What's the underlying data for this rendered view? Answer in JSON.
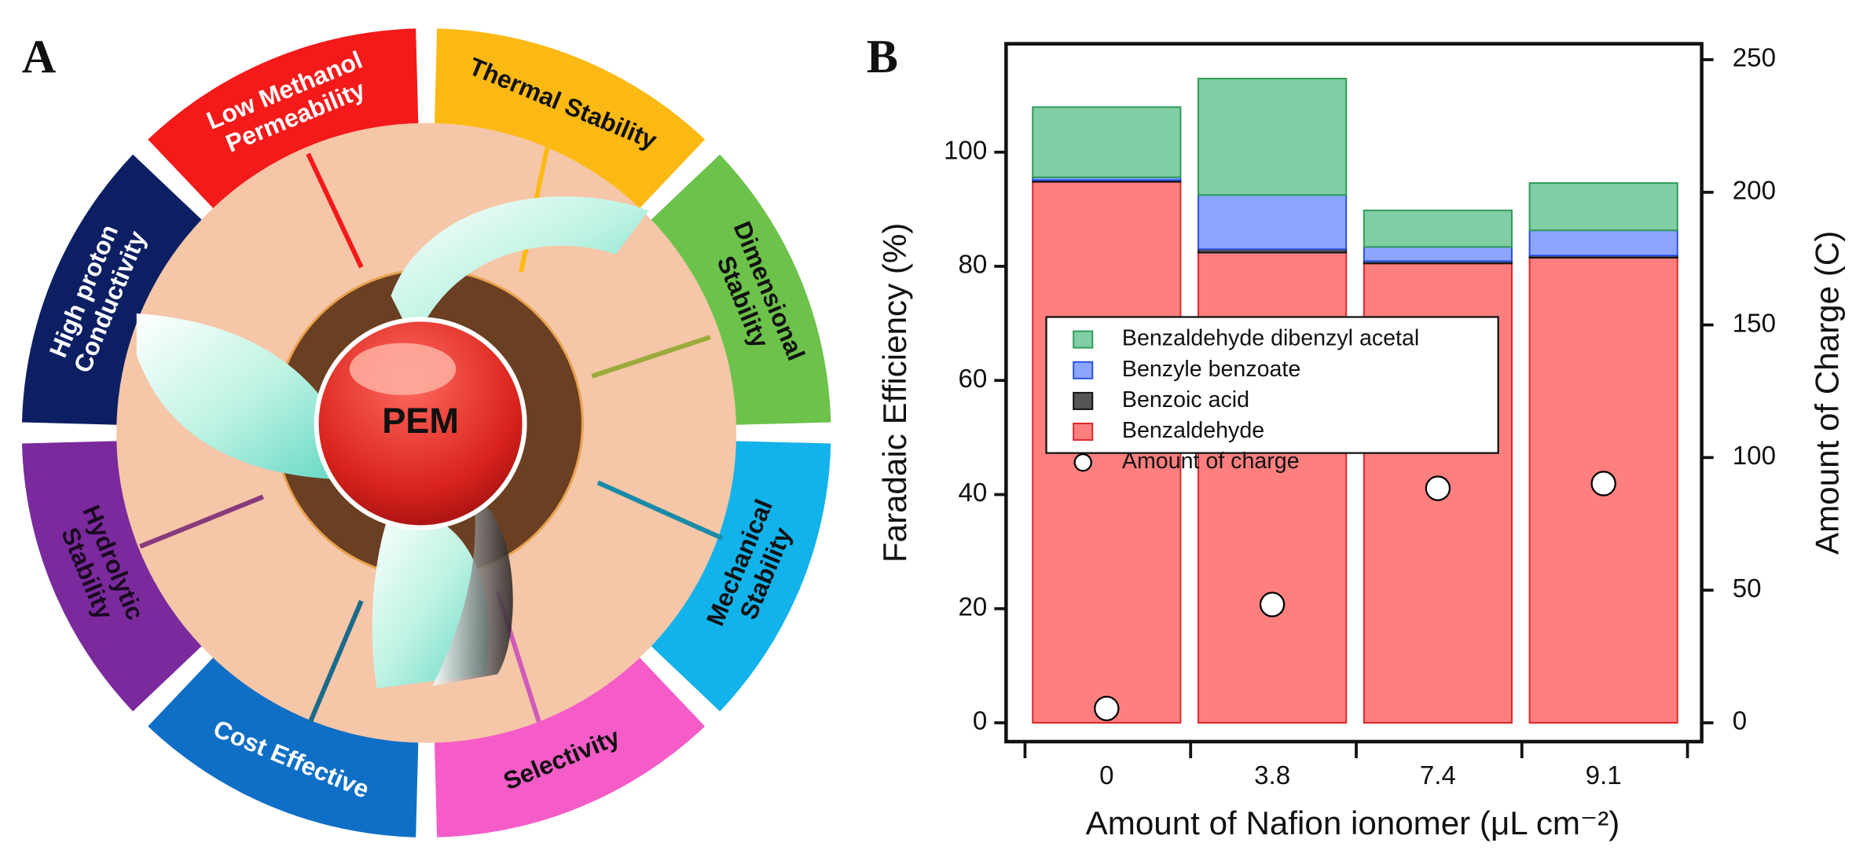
{
  "panel_a": {
    "label": "A",
    "center": "PEM",
    "segments": [
      {
        "label": [
          "Thermal Stability"
        ],
        "color": "#fdb913"
      },
      {
        "label": [
          "Dimensional",
          "Stability"
        ],
        "color": "#6cc24a"
      },
      {
        "label": [
          "Mechanical",
          "Stability"
        ],
        "color": "#12b2ea"
      },
      {
        "label": [
          "Selectivity"
        ],
        "color": "#f55cc8"
      },
      {
        "label": [
          "Cost Effective"
        ],
        "color": "#0f6fc6"
      },
      {
        "label": [
          "Hydrolytic",
          "Stability"
        ],
        "color": "#7b2a9e"
      },
      {
        "label": [
          "High proton",
          "Conductivity"
        ],
        "color": "#0c1f63"
      },
      {
        "label": [
          "Low Methanol",
          "Permeability"
        ],
        "color": "#f41a1a"
      }
    ]
  },
  "chart_data": {
    "type": "bar",
    "stacked": true,
    "panel_label": "B",
    "xlabel": "Amount of Nafion ionomer (μL cm⁻²)",
    "ylabel": "Faradaic Efficiency (%)",
    "y2label": "Amount of Charge (C)",
    "categories": [
      "0",
      "3.8",
      "7.4",
      "9.1"
    ],
    "series": [
      {
        "name": "Benzaldehyde dibenzyl acetal",
        "type": "bar",
        "color": "#80cda6",
        "edge": "#2e9b55",
        "values": [
          12.3,
          20.4,
          6.4,
          8.3
        ]
      },
      {
        "name": "Benzyle benzoate",
        "type": "bar",
        "color": "#8ca6ff",
        "edge": "#2a4fe0",
        "values": [
          0.5,
          9.5,
          2.5,
          4.4
        ]
      },
      {
        "name": "Benzoic acid",
        "type": "bar",
        "color": "#555555",
        "edge": "#111111",
        "values": [
          0.3,
          0.6,
          0.4,
          0.4
        ]
      },
      {
        "name": "Benzaldehyde",
        "type": "bar",
        "color": "#ff7f7f",
        "edge": "#e0262b",
        "values": [
          94.8,
          82.4,
          80.5,
          81.5
        ]
      },
      {
        "name": "Amount of charge",
        "type": "scatter",
        "axis": "y2",
        "color": "#ffffff",
        "edge": "#000000",
        "values": [
          5.4,
          44.6,
          88.4,
          90.2
        ]
      }
    ],
    "ylim": [
      -3.3,
      119
    ],
    "yticks": [
      0,
      20,
      40,
      60,
      80,
      100
    ],
    "y2lim": [
      -7.1,
      256
    ],
    "y2ticks": [
      0,
      50,
      100,
      150,
      200,
      250
    ],
    "legend": "center-left"
  }
}
